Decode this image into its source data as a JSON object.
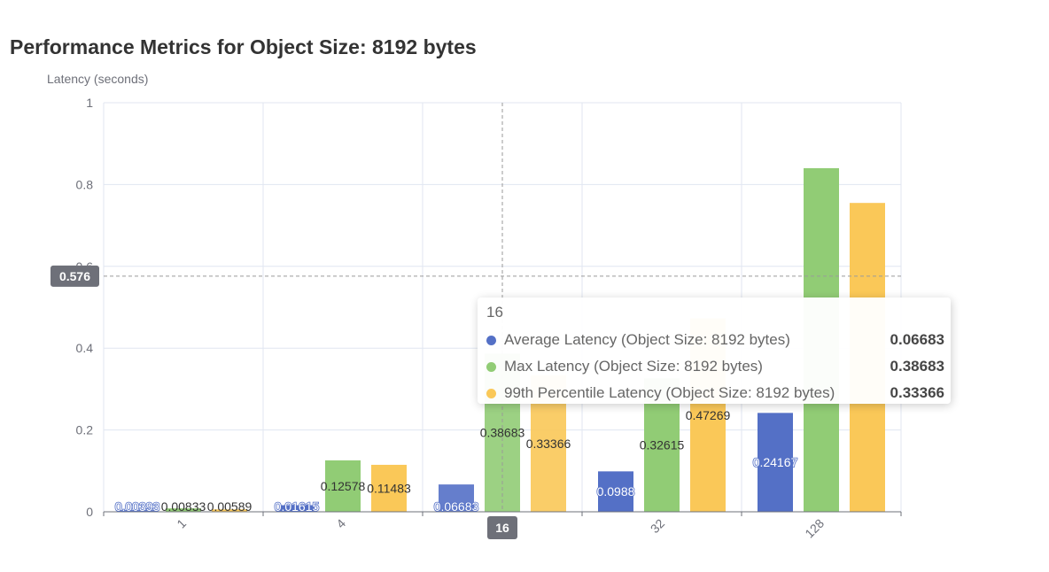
{
  "colors": {
    "series": [
      "#5470c6",
      "#91cc75",
      "#fac858"
    ],
    "axis": "#6e7079",
    "grid": "#e0e6f1",
    "pointer": "#6e7079"
  },
  "chart_data": {
    "type": "bar",
    "title": "Performance Metrics for Object Size: 8192 bytes",
    "ylabel": "Latency (seconds)",
    "xlabel": "",
    "categories": [
      "1",
      "4",
      "16",
      "32",
      "128"
    ],
    "ylim": [
      0,
      1
    ],
    "yticks": [
      "0",
      "0.2",
      "0.4",
      "0.6",
      "0.8",
      "1"
    ],
    "grid": true,
    "series": [
      {
        "name": "Average Latency (Object Size: 8192 bytes)",
        "values": [
          0.00393,
          0.01615,
          0.06683,
          0.0988,
          0.24167
        ],
        "labels": [
          "0.00393",
          "0.01615",
          "0.06683",
          "0.0988",
          "0.24167"
        ]
      },
      {
        "name": "Max Latency (Object Size: 8192 bytes)",
        "values": [
          0.00833,
          0.12578,
          0.38683,
          0.32615,
          0.84
        ],
        "labels": [
          "0.00833",
          "0.12578",
          "0.38683",
          "0.32615",
          ""
        ]
      },
      {
        "name": "99th Percentile Latency (Object Size: 8192 bytes)",
        "values": [
          0.00589,
          0.11483,
          0.33366,
          0.47269,
          0.755
        ],
        "labels": [
          "0.00589",
          "0.11483",
          "0.33366",
          "0.47269",
          ""
        ]
      }
    ],
    "pointer": {
      "y_value": 0.576,
      "y_label": "0.576",
      "x_label": "16",
      "x_category_index": 2
    },
    "tooltip": {
      "title": "16",
      "rows": [
        {
          "name": "Average Latency (Object Size: 8192 bytes)",
          "value": "0.06683"
        },
        {
          "name": "Max Latency (Object Size: 8192 bytes)",
          "value": "0.38683"
        },
        {
          "name": "99th Percentile Latency (Object Size: 8192 bytes)",
          "value": "0.33366"
        }
      ]
    }
  }
}
